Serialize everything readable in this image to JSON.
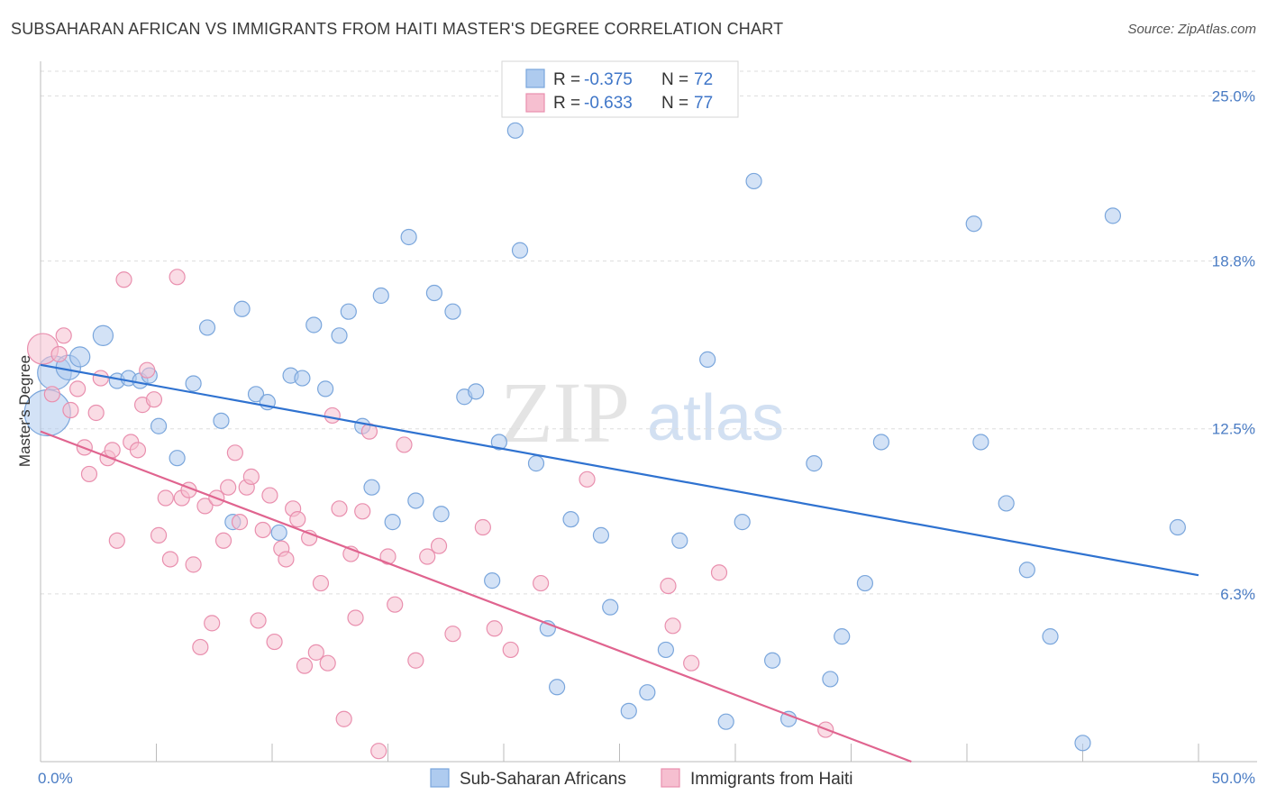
{
  "title": "SUBSAHARAN AFRICAN VS IMMIGRANTS FROM HAITI MASTER'S DEGREE CORRELATION CHART",
  "source": "Source: ZipAtlas.com",
  "watermark": {
    "part1": "ZIP",
    "part2": "atlas"
  },
  "legend": {
    "row1": {
      "r_label": "R = ",
      "r_value": "-0.375",
      "n_label": "N = ",
      "n_value": "72"
    },
    "row2": {
      "r_label": "R = ",
      "r_value": "-0.633",
      "n_label": "N = ",
      "n_value": "77"
    }
  },
  "colors": {
    "blue_fill": "#aecbef",
    "blue_stroke": "#7aa6dc",
    "blue_line": "#2f72d0",
    "pink_fill": "#f6bfd0",
    "pink_stroke": "#e98fae",
    "pink_line": "#e0648f",
    "grid": "#dddddd",
    "axis_text": "#4a7cc4"
  },
  "chart_data": {
    "type": "scatter",
    "title": "SUBSAHARAN AFRICAN VS IMMIGRANTS FROM HAITI MASTER'S DEGREE CORRELATION CHART",
    "xlabel": "",
    "ylabel": "Master's Degree",
    "xlim": [
      0,
      50
    ],
    "ylim": [
      0,
      26.3
    ],
    "x_tick_labels": [
      "0.0%",
      "50.0%"
    ],
    "y_ticks": [
      6.3,
      12.5,
      18.8,
      25.0
    ],
    "y_tick_labels": [
      "6.3%",
      "12.5%",
      "18.8%",
      "25.0%"
    ],
    "grid": true,
    "legend_position": "top-center",
    "series": [
      {
        "name": "Sub-Saharan Africans",
        "color": "#aecbef",
        "r": -0.375,
        "n": 72,
        "trend": {
          "x": [
            0,
            50
          ],
          "y": [
            14.9,
            7.0
          ]
        },
        "points": [
          [
            0.3,
            13.1,
            3
          ],
          [
            0.6,
            14.6,
            2.2
          ],
          [
            1.2,
            14.8,
            1.6
          ],
          [
            1.7,
            15.2,
            1.3
          ],
          [
            2.7,
            16.0,
            1.3
          ],
          [
            3.3,
            14.3,
            1
          ],
          [
            3.8,
            14.4,
            1
          ],
          [
            4.3,
            14.3,
            1
          ],
          [
            4.7,
            14.5,
            1
          ],
          [
            5.1,
            12.6,
            1
          ],
          [
            5.9,
            11.4,
            1
          ],
          [
            6.6,
            14.2,
            1
          ],
          [
            7.2,
            16.3,
            1
          ],
          [
            7.8,
            12.8,
            1
          ],
          [
            8.3,
            9.0,
            1
          ],
          [
            8.7,
            17.0,
            1
          ],
          [
            9.3,
            13.8,
            1
          ],
          [
            9.8,
            13.5,
            1
          ],
          [
            10.3,
            8.6,
            1
          ],
          [
            10.8,
            14.5,
            1
          ],
          [
            11.3,
            14.4,
            1
          ],
          [
            11.8,
            16.4,
            1
          ],
          [
            12.3,
            14.0,
            1
          ],
          [
            12.9,
            16.0,
            1
          ],
          [
            13.3,
            16.9,
            1
          ],
          [
            13.9,
            12.6,
            1
          ],
          [
            14.3,
            10.3,
            1
          ],
          [
            14.7,
            17.5,
            1
          ],
          [
            15.2,
            9.0,
            1
          ],
          [
            15.9,
            19.7,
            1
          ],
          [
            16.2,
            9.8,
            1
          ],
          [
            17.0,
            17.6,
            1
          ],
          [
            17.3,
            9.3,
            1
          ],
          [
            17.8,
            16.9,
            1
          ],
          [
            18.3,
            13.7,
            1
          ],
          [
            18.8,
            13.9,
            1
          ],
          [
            19.5,
            6.8,
            1
          ],
          [
            19.8,
            12.0,
            1
          ],
          [
            20.5,
            23.7,
            1
          ],
          [
            20.7,
            19.2,
            1
          ],
          [
            21.4,
            11.2,
            1
          ],
          [
            21.9,
            5.0,
            1
          ],
          [
            22.3,
            2.8,
            1
          ],
          [
            22.9,
            9.1,
            1
          ],
          [
            24.2,
            8.5,
            1
          ],
          [
            24.6,
            5.8,
            1
          ],
          [
            25.4,
            1.9,
            1
          ],
          [
            26.2,
            2.6,
            1
          ],
          [
            27.0,
            4.2,
            1
          ],
          [
            27.6,
            8.3,
            1
          ],
          [
            28.8,
            15.1,
            1
          ],
          [
            29.6,
            1.5,
            1
          ],
          [
            30.3,
            9.0,
            1
          ],
          [
            30.8,
            21.8,
            1
          ],
          [
            31.6,
            3.8,
            1
          ],
          [
            32.3,
            1.6,
            1
          ],
          [
            33.4,
            11.2,
            1
          ],
          [
            34.1,
            3.1,
            1
          ],
          [
            34.6,
            4.7,
            1
          ],
          [
            35.6,
            6.7,
            1
          ],
          [
            36.3,
            12.0,
            1
          ],
          [
            40.3,
            20.2,
            1
          ],
          [
            40.6,
            12.0,
            1
          ],
          [
            41.7,
            9.7,
            1
          ],
          [
            42.6,
            7.2,
            1
          ],
          [
            43.6,
            4.7,
            1
          ],
          [
            45.0,
            0.7,
            1
          ],
          [
            46.3,
            20.5,
            1
          ],
          [
            49.1,
            8.8,
            1
          ]
        ]
      },
      {
        "name": "Immigrants from Haiti",
        "color": "#f6bfd0",
        "r": -0.633,
        "n": 77,
        "trend": {
          "x": [
            0,
            37.6
          ],
          "y": [
            12.4,
            0
          ]
        },
        "points": [
          [
            0.1,
            15.5,
            2
          ],
          [
            0.5,
            13.8,
            1
          ],
          [
            0.8,
            15.3,
            1
          ],
          [
            1.0,
            16.0,
            1
          ],
          [
            1.3,
            13.2,
            1
          ],
          [
            1.6,
            14.0,
            1
          ],
          [
            1.9,
            11.8,
            1
          ],
          [
            2.1,
            10.8,
            1
          ],
          [
            2.4,
            13.1,
            1
          ],
          [
            2.6,
            14.4,
            1
          ],
          [
            2.9,
            11.4,
            1
          ],
          [
            3.1,
            11.7,
            1
          ],
          [
            3.3,
            8.3,
            1
          ],
          [
            3.6,
            18.1,
            1
          ],
          [
            3.9,
            12.0,
            1
          ],
          [
            4.2,
            11.7,
            1
          ],
          [
            4.4,
            13.4,
            1
          ],
          [
            4.6,
            14.7,
            1
          ],
          [
            4.9,
            13.6,
            1
          ],
          [
            5.1,
            8.5,
            1
          ],
          [
            5.4,
            9.9,
            1
          ],
          [
            5.6,
            7.6,
            1
          ],
          [
            5.9,
            18.2,
            1
          ],
          [
            6.1,
            9.9,
            1
          ],
          [
            6.4,
            10.2,
            1
          ],
          [
            6.6,
            7.4,
            1
          ],
          [
            6.9,
            4.3,
            1
          ],
          [
            7.1,
            9.6,
            1
          ],
          [
            7.4,
            5.2,
            1
          ],
          [
            7.6,
            9.9,
            1
          ],
          [
            7.9,
            8.3,
            1
          ],
          [
            8.1,
            10.3,
            1
          ],
          [
            8.4,
            11.6,
            1
          ],
          [
            8.6,
            9.0,
            1
          ],
          [
            8.9,
            10.3,
            1
          ],
          [
            9.1,
            10.7,
            1
          ],
          [
            9.4,
            5.3,
            1
          ],
          [
            9.6,
            8.7,
            1
          ],
          [
            9.9,
            10.0,
            1
          ],
          [
            10.1,
            4.5,
            1
          ],
          [
            10.4,
            8.0,
            1
          ],
          [
            10.6,
            7.6,
            1
          ],
          [
            10.9,
            9.5,
            1
          ],
          [
            11.1,
            9.1,
            1
          ],
          [
            11.4,
            3.6,
            1
          ],
          [
            11.6,
            8.4,
            1
          ],
          [
            11.9,
            4.1,
            1
          ],
          [
            12.1,
            6.7,
            1
          ],
          [
            12.4,
            3.7,
            1
          ],
          [
            12.6,
            13.0,
            1
          ],
          [
            12.9,
            9.5,
            1
          ],
          [
            13.1,
            1.6,
            1
          ],
          [
            13.4,
            7.8,
            1
          ],
          [
            13.6,
            5.4,
            1
          ],
          [
            13.9,
            9.4,
            1
          ],
          [
            14.2,
            12.4,
            1
          ],
          [
            14.6,
            0.4,
            1
          ],
          [
            15.0,
            7.7,
            1
          ],
          [
            15.3,
            5.9,
            1
          ],
          [
            15.7,
            11.9,
            1
          ],
          [
            16.2,
            3.8,
            1
          ],
          [
            16.7,
            7.7,
            1
          ],
          [
            17.2,
            8.1,
            1
          ],
          [
            17.8,
            4.8,
            1
          ],
          [
            19.1,
            8.8,
            1
          ],
          [
            19.6,
            5.0,
            1
          ],
          [
            20.3,
            4.2,
            1
          ],
          [
            21.6,
            6.7,
            1
          ],
          [
            23.6,
            10.6,
            1
          ],
          [
            27.1,
            6.6,
            1
          ],
          [
            27.3,
            5.1,
            1
          ],
          [
            28.1,
            3.7,
            1
          ],
          [
            29.3,
            7.1,
            1
          ],
          [
            33.9,
            1.2,
            1
          ]
        ]
      }
    ]
  },
  "bottom_legend": [
    {
      "label": "Sub-Saharan Africans"
    },
    {
      "label": "Immigrants from Haiti"
    }
  ]
}
